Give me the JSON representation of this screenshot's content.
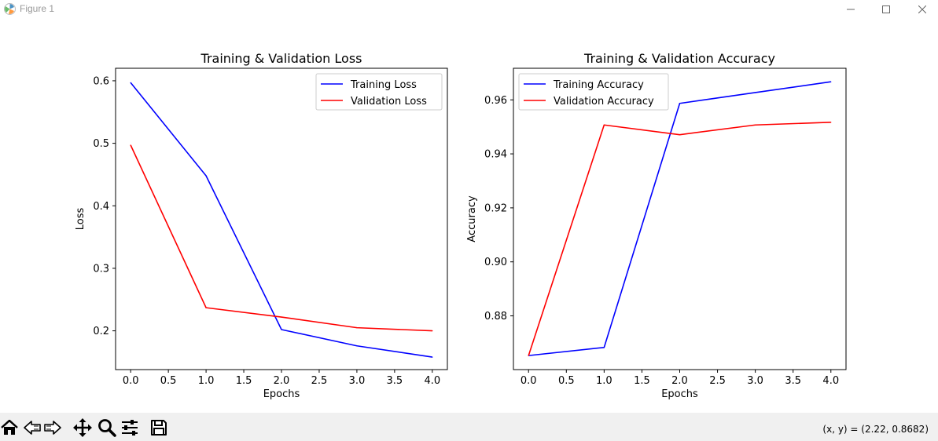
{
  "window": {
    "title": "Figure 1"
  },
  "toolbar": {
    "tools": [
      "home-icon",
      "back-icon",
      "forward-icon",
      "pan-icon",
      "zoom-icon",
      "configure-subplots-icon",
      "save-icon"
    ],
    "coords": "(x, y) = (2.22, 0.8682)"
  },
  "colors": {
    "training": "#0000ff",
    "validation": "#ff0000"
  },
  "chart_data": [
    {
      "type": "line",
      "title": "Training & Validation Loss",
      "xlabel": "Epochs",
      "ylabel": "Loss",
      "xlim": [
        -0.2,
        4.2
      ],
      "ylim": [
        0.138,
        0.62
      ],
      "xticks": [
        0.0,
        0.5,
        1.0,
        1.5,
        2.0,
        2.5,
        3.0,
        3.5,
        4.0
      ],
      "xtick_labels": [
        "0.0",
        "0.5",
        "1.0",
        "1.5",
        "2.0",
        "2.5",
        "3.0",
        "3.5",
        "4.0"
      ],
      "yticks": [
        0.2,
        0.3,
        0.4,
        0.5,
        0.6
      ],
      "ytick_labels": [
        "0.2",
        "0.3",
        "0.4",
        "0.5",
        "0.6"
      ],
      "legend_loc": "upper right",
      "x": [
        0,
        1,
        2,
        3,
        4
      ],
      "series": [
        {
          "name": "Training Loss",
          "color": "#0000ff",
          "values": [
            0.597,
            0.448,
            0.202,
            0.176,
            0.158
          ]
        },
        {
          "name": "Validation Loss",
          "color": "#ff0000",
          "values": [
            0.497,
            0.237,
            0.222,
            0.205,
            0.2
          ]
        }
      ]
    },
    {
      "type": "line",
      "title": "Training & Validation Accuracy",
      "xlabel": "Epochs",
      "ylabel": "Accuracy",
      "xlim": [
        -0.2,
        4.2
      ],
      "ylim": [
        0.8601,
        0.9717
      ],
      "xticks": [
        0.0,
        0.5,
        1.0,
        1.5,
        2.0,
        2.5,
        3.0,
        3.5,
        4.0
      ],
      "xtick_labels": [
        "0.0",
        "0.5",
        "1.0",
        "1.5",
        "2.0",
        "2.5",
        "3.0",
        "3.5",
        "4.0"
      ],
      "yticks": [
        0.88,
        0.9,
        0.92,
        0.94,
        0.96
      ],
      "ytick_labels": [
        "0.88",
        "0.90",
        "0.92",
        "0.94",
        "0.96"
      ],
      "legend_loc": "upper left",
      "x": [
        0,
        1,
        2,
        3,
        4
      ],
      "series": [
        {
          "name": "Training Accuracy",
          "color": "#0000ff",
          "values": [
            0.8653,
            0.8683,
            0.9587,
            0.9627,
            0.9667
          ]
        },
        {
          "name": "Validation Accuracy",
          "color": "#ff0000",
          "values": [
            0.8653,
            0.9507,
            0.9471,
            0.9507,
            0.9517
          ]
        }
      ]
    }
  ]
}
